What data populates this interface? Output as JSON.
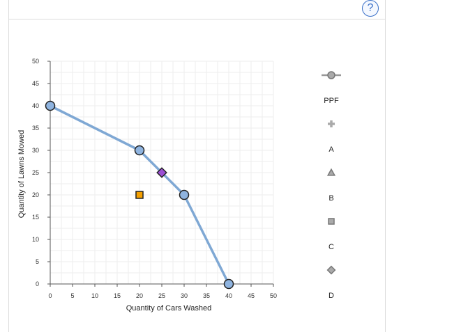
{
  "help": {
    "label": "?"
  },
  "chart_data": {
    "type": "line",
    "xlabel": "Quantity of Cars Washed",
    "ylabel": "Quantity of Lawns Mowed",
    "xlim": [
      0,
      50
    ],
    "ylim": [
      0,
      50
    ],
    "x_ticks": [
      0,
      5,
      10,
      15,
      20,
      25,
      30,
      35,
      40,
      45,
      50
    ],
    "y_ticks": [
      0,
      5,
      10,
      15,
      20,
      25,
      30,
      35,
      40,
      45,
      50
    ],
    "grid": true,
    "legend_placement": "right",
    "series": [
      {
        "name": "PPF",
        "marker": "circle",
        "color": "#7fa8d4",
        "marker_fill": "#8fb4e0",
        "points": [
          {
            "x": 0,
            "y": 40
          },
          {
            "x": 20,
            "y": 30
          },
          {
            "x": 30,
            "y": 20
          },
          {
            "x": 40,
            "y": 0
          }
        ]
      },
      {
        "name": "A",
        "marker": "plus",
        "color": "#aaaaaa",
        "points": []
      },
      {
        "name": "B",
        "marker": "triangle",
        "color": "#aaaaaa",
        "points": []
      },
      {
        "name": "C",
        "marker": "square",
        "color": "#f5a000",
        "points": [
          {
            "x": 20,
            "y": 20
          }
        ]
      },
      {
        "name": "D",
        "marker": "diamond",
        "color": "#9b4fd4",
        "points": [
          {
            "x": 25,
            "y": 25
          }
        ]
      }
    ]
  }
}
